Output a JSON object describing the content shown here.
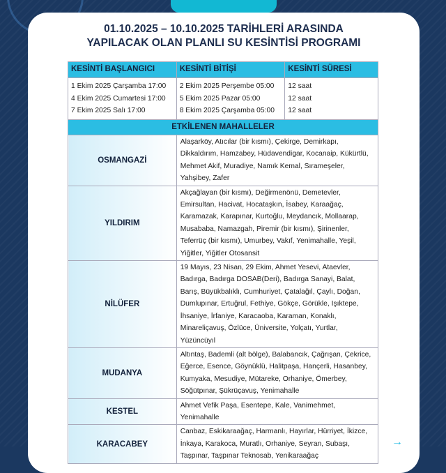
{
  "title": {
    "line1": "01.10.2025 – 10.10.2025 TARİHLERİ ARASINDA",
    "line2": "YAPILACAK OLAN PLANLI SU KESİNTİSİ PROGRAMI"
  },
  "headers": [
    "KESİNTİ BAŞLANGICI",
    "KESİNTİ BİTİŞİ",
    "KESİNTİ SÜRESİ"
  ],
  "schedule": {
    "starts": [
      "1 Ekim 2025 Çarşamba 17:00",
      "4 Ekim 2025 Cumartesi 17:00",
      "7 Ekim 2025 Salı 17:00"
    ],
    "ends": [
      "2 Ekim 2025 Perşembe 05:00",
      "5 Ekim 2025 Pazar 05:00",
      "8 Ekim 2025 Çarşamba 05:00"
    ],
    "durations": [
      "12 saat",
      "12 saat",
      "12 saat"
    ]
  },
  "affected_header": "ETKİLENEN MAHALLELER",
  "districts": [
    {
      "name": "OSMANGAZİ",
      "neighborhoods": "Alaşarköy, Atıcılar (bir kısmı), Çekirge, Demirkapı, Dikkaldırım, Hamzabey, Hüdavendigar, Kocanaip, Kükürtlü, Mehmet Akif, Muradiye, Namık Kemal, Sırameşeler, Yahşibey, Zafer"
    },
    {
      "name": "YILDIRIM",
      "neighborhoods": "Akçağlayan (bir kısmı), Değirmenönü, Demetevler, Emirsultan, Hacivat, Hocataşkın, İsabey, Karaağaç, Karamazak, Karapınar, Kurtoğlu, Meydancık, Mollaarap, Musababa, Namazgah, Piremir (bir kısmı), Şirinenler, Teferrüç (bir kısmı), Umurbey, Vakıf, Yenimahalle, Yeşil, Yiğitler, Yiğitler Otosansit"
    },
    {
      "name": "NİLÜFER",
      "neighborhoods": "19 Mayıs, 23 Nisan, 29 Ekim, Ahmet Yesevi, Ataevler, Badırga, Badırga DOSAB(Deri), Badırga Sanayi, Balat, Barış, Büyükbalıklı, Cumhuriyet, Çatalağıl, Çaylı, Doğan, Dumlupınar, Ertuğrul, Fethiye, Gökçe, Görükle, Işıktepe, İhsaniye, İrfaniye, Karacaoba, Karaman, Konaklı, Minareliçavuş, Özlüce, Üniversite, Yolçatı, Yurtlar, Yüzüncüyıl"
    },
    {
      "name": "MUDANYA",
      "neighborhoods": "Altıntaş, Bademli (alt bölge), Balabancık, Çağrışan, Çekrice, Eğerce, Esence, Göynüklü, Halitpaşa, Hançerli, Hasanbey, Kumyaka, Mesudiye, Mütareke, Orhaniye, Ömerbey, Söğütpınar, Şükrüçavuş, Yenimahalle"
    },
    {
      "name": "KESTEL",
      "neighborhoods": "Ahmet Vefik Paşa, Esentepe, Kale, Vanimehmet, Yenimahalle"
    },
    {
      "name": "KARACABEY",
      "neighborhoods": "Canbaz, Eskikaraağaç, Harmanlı, Hayırlar, Hürriyet, İkizce, İnkaya, Karakoca, Muratlı, Orhaniye, Seyran, Subaşı, Taşpınar, Taşpınar Teknosab, Yenikaraağaç"
    }
  ],
  "colors": {
    "background": "#1b3860",
    "accent": "#2bbde3",
    "title": "#1e2e4f"
  }
}
